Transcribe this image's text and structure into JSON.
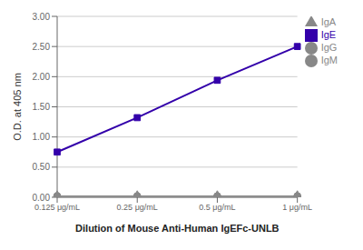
{
  "chart_data": {
    "type": "line",
    "categories": [
      "0.125 μg/mL",
      "0.25 μg/mL",
      "0.5 μg/mL",
      "1 μg/mL"
    ],
    "series": [
      {
        "name": "IgG",
        "color": "#888888",
        "marker": "circle",
        "values": [
          0.02,
          0.02,
          0.02,
          0.02
        ]
      },
      {
        "name": "IgM",
        "color": "#888888",
        "marker": "circle",
        "values": [
          0.02,
          0.02,
          0.02,
          0.02
        ]
      },
      {
        "name": "IgA",
        "color": "#888888",
        "marker": "triangle",
        "values": [
          0.02,
          0.02,
          0.02,
          0.02
        ]
      },
      {
        "name": "IgE",
        "color": "#3300aa",
        "marker": "square",
        "values": [
          0.75,
          1.32,
          1.94,
          2.5
        ]
      }
    ],
    "xlabel": "Dilution of Mouse Anti-Human IgEFc-UNLB",
    "ylabel": "O.D. at 405 nm",
    "ylim": [
      0.0,
      3.0
    ],
    "yticks": [
      {
        "value": 0,
        "label": "0.00"
      },
      {
        "value": 0.5,
        "label": "0.50"
      },
      {
        "value": 1,
        "label": "1.00"
      },
      {
        "value": 1.5,
        "label": "1.50"
      },
      {
        "value": 2,
        "label": "2.00"
      },
      {
        "value": 2.5,
        "label": "2.50"
      },
      {
        "value": 3,
        "label": "3.00"
      }
    ],
    "grid": true,
    "legend": "right"
  }
}
